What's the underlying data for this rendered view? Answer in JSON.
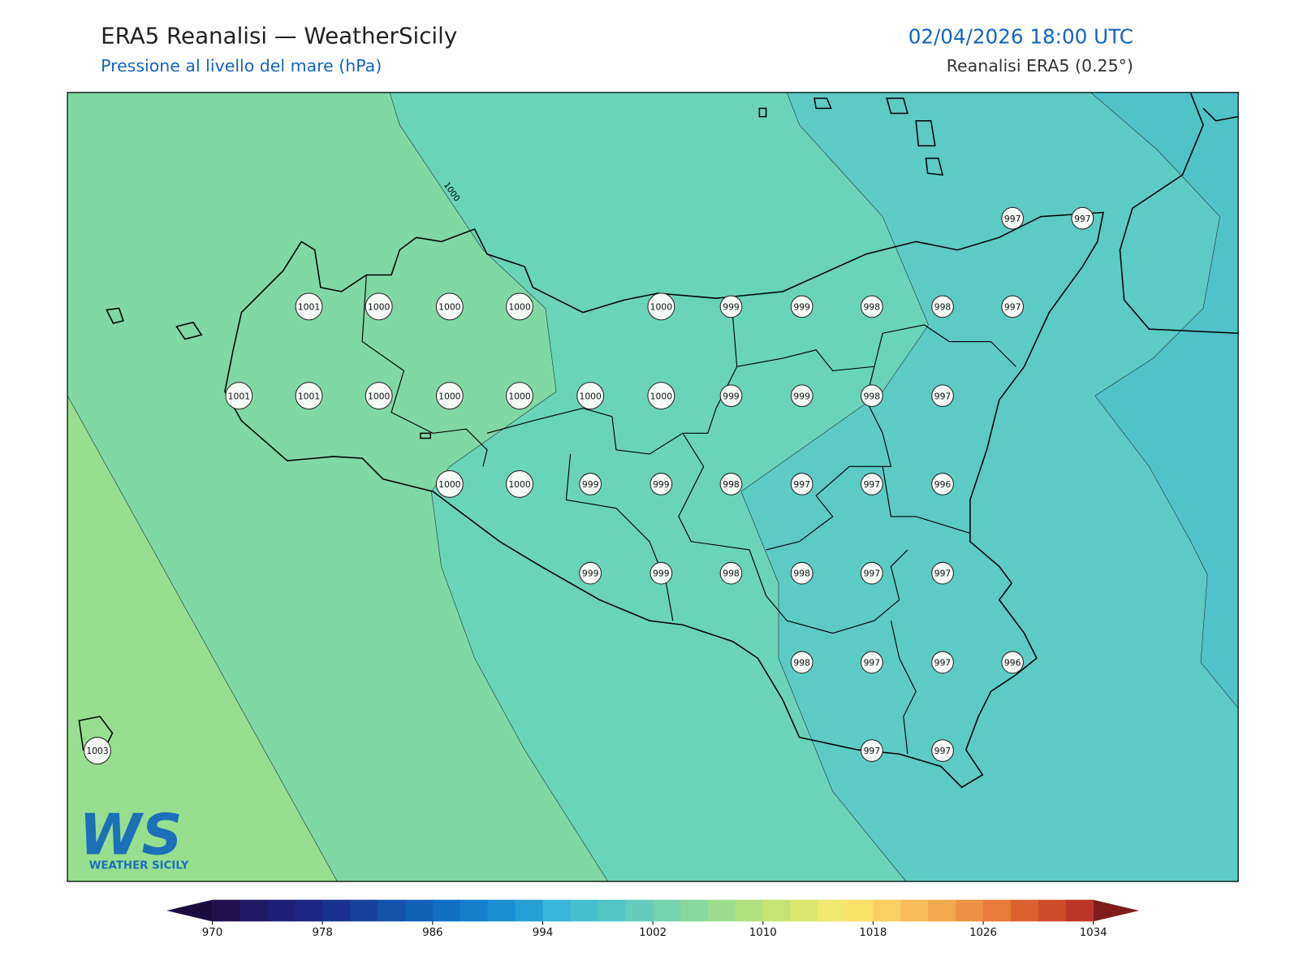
{
  "header": {
    "title": "ERA5 Reanalisi — WeatherSicily",
    "subtitle": "Pressione al livello del mare (hPa)",
    "datetime": "02/04/2026 18:00 UTC",
    "source": "Reanalisi ERA5 (0.25°)"
  },
  "contour_label": 1000,
  "stations": [
    1001,
    1000,
    1000,
    1000,
    1000,
    999,
    999,
    998,
    998,
    997,
    1001,
    1001,
    1000,
    1000,
    1000,
    1000,
    1000,
    999,
    999,
    998,
    997,
    1000,
    1000,
    999,
    999,
    998,
    997,
    997,
    996,
    999,
    999,
    998,
    998,
    997,
    997,
    998,
    997,
    997,
    996,
    997,
    997,
    997,
    997,
    1003
  ],
  "colorbar": {
    "levels": [
      970,
      972,
      974,
      976,
      978,
      980,
      982,
      984,
      986,
      988,
      990,
      992,
      994,
      996,
      998,
      1000,
      1002,
      1004,
      1006,
      1008,
      1010,
      1012,
      1014,
      1016,
      1018,
      1020,
      1022,
      1024,
      1026,
      1028,
      1030,
      1032,
      1034
    ],
    "ticks": [
      970,
      978,
      986,
      994,
      1002,
      1010,
      1018,
      1026,
      1034
    ],
    "colors": [
      "#22104f",
      "#231a66",
      "#201f78",
      "#1d2683",
      "#1a328f",
      "#17419c",
      "#1451ab",
      "#1260b6",
      "#0f70c4",
      "#1480cc",
      "#1b8fd1",
      "#279fd5",
      "#38b5d6",
      "#46c0cf",
      "#52c6c6",
      "#62cdbb",
      "#75d3ae",
      "#88d89f",
      "#9cdc8f",
      "#b1e07e",
      "#c7e473",
      "#dbe86f",
      "#efe870",
      "#fbe06a",
      "#f9cf62",
      "#f6bd58",
      "#f2a84d",
      "#ed9242",
      "#e67a38",
      "#db6230",
      "#cf4b2a",
      "#bd3526"
    ],
    "under_color": "#1b0c40",
    "over_color": "#7f1d1d"
  },
  "logo": {
    "mark": "WS",
    "text": "WEATHER SICILY"
  }
}
